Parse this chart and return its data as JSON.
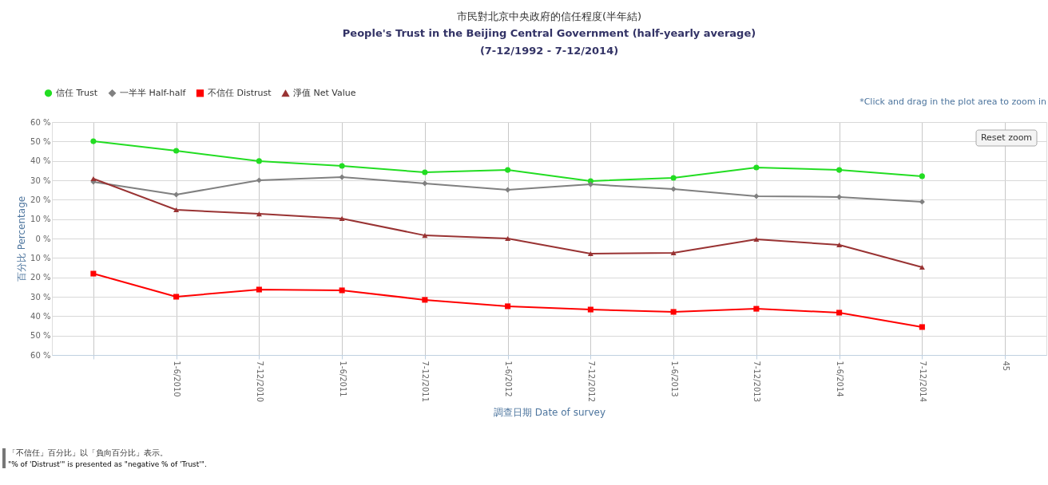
{
  "chart_data": {
    "type": "line",
    "title": "市民對北京中央政府的信任程度(半年結)",
    "subtitle": [
      "People's Trust in the Beijing Central Government (half-yearly average)",
      "(7-12/1992 - 7-12/2014)"
    ],
    "xlabel": "調查日期 Date of survey",
    "ylabel": "百分比 Percentage",
    "categories": [
      null,
      "1-6/2010",
      "7-12/2010",
      "1-6/2011",
      "7-12/2011",
      "1-6/2012",
      "7-12/2012",
      "1-6/2013",
      "7-12/2013",
      "1-6/2014",
      "7-12/2014",
      "45"
    ],
    "series": [
      {
        "name": "信任 Trust",
        "color": "#22dd22",
        "marker": "circle",
        "values": [
          50.1,
          45.2,
          39.9,
          37.4,
          34.1,
          35.3,
          29.6,
          31.2,
          36.6,
          35.3,
          32.1,
          null
        ]
      },
      {
        "name": "一半半 Half-half",
        "color": "#808080",
        "marker": "diamond",
        "values": [
          29.2,
          22.6,
          30.0,
          31.6,
          28.4,
          25.1,
          27.9,
          25.5,
          21.8,
          21.4,
          18.9,
          null
        ]
      },
      {
        "name": "不信任 Distrust",
        "color": "#ff0000",
        "marker": "square",
        "values": [
          -18.1,
          -30.0,
          -26.3,
          -26.7,
          -31.6,
          -34.9,
          -36.6,
          -37.8,
          -36.2,
          -38.2,
          -45.6,
          null
        ]
      },
      {
        "name": "淨值 Net Value",
        "color": "#993333",
        "marker": "triangle",
        "values": [
          30.8,
          14.8,
          12.7,
          10.3,
          1.6,
          0.0,
          -7.8,
          -7.4,
          -0.4,
          -3.3,
          -14.8,
          null
        ]
      }
    ],
    "ylim": [
      -60,
      60
    ],
    "yticks": [
      {
        "value": -60,
        "label": "60 %"
      },
      {
        "value": -50,
        "label": "50 %"
      },
      {
        "value": -40,
        "label": "40 %"
      },
      {
        "value": -30,
        "label": "30 %"
      },
      {
        "value": -20,
        "label": "20 %"
      },
      {
        "value": -10,
        "label": "10 %"
      },
      {
        "value": 0,
        "label": "0 %"
      },
      {
        "value": 10,
        "label": "10 %"
      },
      {
        "value": 20,
        "label": "20 %"
      },
      {
        "value": 30,
        "label": "30 %"
      },
      {
        "value": 40,
        "label": "40 %"
      },
      {
        "value": 50,
        "label": "50 %"
      },
      {
        "value": 60,
        "label": "60 %"
      }
    ],
    "grid": true,
    "legend": "top left",
    "line_style": "solid",
    "annotations": [
      "*Click and drag in the plot area to zoom in",
      "Reset zoom",
      "「不信任」百分比」以「負向百分比」表示。",
      "\"% of 'Distrust'\" is presented as \"negative % of 'Trust'\"."
    ]
  }
}
